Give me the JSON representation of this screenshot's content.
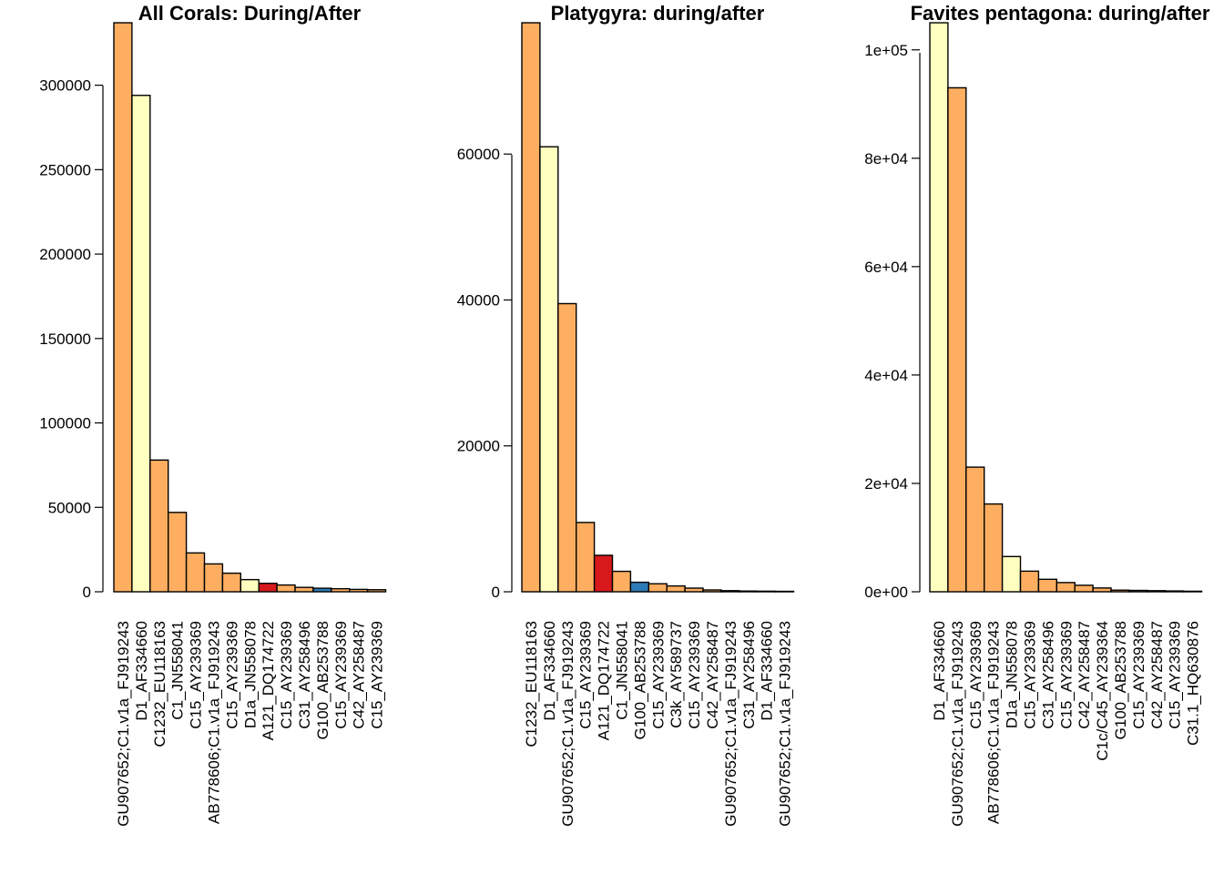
{
  "chart_data": [
    {
      "type": "bar",
      "title": "All Corals: During/After",
      "xlabel": "",
      "ylabel": "",
      "ylim": [
        0,
        337000
      ],
      "yticks": [
        0,
        50000,
        100000,
        150000,
        200000,
        250000,
        300000
      ],
      "ytick_labels": [
        "0",
        "50000",
        "100000",
        "150000",
        "200000",
        "250000",
        "300000"
      ],
      "categories": [
        "GU907652;C1.v1a_FJ919243",
        "D1_AF334660",
        "C1232_EU118163",
        "C1_JN558041",
        "C15_AY239369",
        "AB778606;C1.v1a_FJ919243",
        "C15_AY239369",
        "D1a_JN558078",
        "A121_DQ174722",
        "C15_AY239369",
        "C31_AY258496",
        "G100_AB253788",
        "C15_AY239369",
        "C42_AY258487",
        "C15_AY239369"
      ],
      "values": [
        337000,
        294000,
        78000,
        47000,
        23000,
        16500,
        11000,
        7200,
        5000,
        4000,
        2600,
        2100,
        1800,
        1400,
        1200
      ],
      "colors": [
        "#FDAE61",
        "#FFFFBF",
        "#FDAE61",
        "#FDAE61",
        "#FDAE61",
        "#FDAE61",
        "#FDAE61",
        "#FFFFBF",
        "#D7191C",
        "#FDAE61",
        "#FDAE61",
        "#2C7BB6",
        "#FDAE61",
        "#FDAE61",
        "#FDAE61"
      ]
    },
    {
      "type": "bar",
      "title": "Platygyra: during/after",
      "xlabel": "",
      "ylabel": "",
      "ylim": [
        0,
        78000
      ],
      "yticks": [
        0,
        20000,
        40000,
        60000
      ],
      "ytick_labels": [
        "0",
        "20000",
        "40000",
        "60000"
      ],
      "categories": [
        "C1232_EU118163",
        "D1_AF334660",
        "GU907652;C1.v1a_FJ919243",
        "C15_AY239369",
        "A121_DQ174722",
        "C1_JN558041",
        "G100_AB253788",
        "C15_AY239369",
        "C3k_AY589737",
        "C15_AY239369",
        "C42_AY258487",
        "GU907652;C1.v1a_FJ919243",
        "C31_AY258496",
        "D1_AF334660",
        "GU907652;C1.v1a_FJ919243"
      ],
      "values": [
        78000,
        61000,
        39500,
        9500,
        5000,
        2800,
        1300,
        1100,
        800,
        500,
        250,
        150,
        100,
        80,
        60
      ],
      "colors": [
        "#FDAE61",
        "#FFFFBF",
        "#FDAE61",
        "#FDAE61",
        "#D7191C",
        "#FDAE61",
        "#2C7BB6",
        "#FDAE61",
        "#FDAE61",
        "#FDAE61",
        "#FDAE61",
        "#FDAE61",
        "#FDAE61",
        "#FFFFBF",
        "#FDAE61"
      ]
    },
    {
      "type": "bar",
      "title": "Favites pentagona: during/after",
      "xlabel": "",
      "ylabel": "",
      "ylim": [
        0,
        105000
      ],
      "yticks": [
        0,
        20000,
        40000,
        60000,
        80000,
        100000
      ],
      "ytick_labels": [
        "0e+00",
        "2e+04",
        "4e+04",
        "6e+04",
        "8e+04",
        "1e+05"
      ],
      "categories": [
        "D1_AF334660",
        "GU907652;C1.v1a_FJ919243",
        "C15_AY239369",
        "AB778606;C1.v1a_FJ919243",
        "D1a_JN558078",
        "C15_AY239369",
        "C31_AY258496",
        "C15_AY239369",
        "C42_AY258487",
        "C1c/C45_AY239364",
        "G100_AB253788",
        "C15_AY239369",
        "C42_AY258487",
        "C15_AY239369",
        "C31.1_HQ630876"
      ],
      "values": [
        105000,
        93000,
        23000,
        16200,
        6500,
        3800,
        2300,
        1700,
        1200,
        700,
        300,
        250,
        200,
        150,
        100
      ],
      "colors": [
        "#FFFFBF",
        "#FDAE61",
        "#FDAE61",
        "#FDAE61",
        "#FFFFBF",
        "#FDAE61",
        "#FDAE61",
        "#FDAE61",
        "#FDAE61",
        "#FDAE61",
        "#FDAE61",
        "#FDAE61",
        "#FDAE61",
        "#FDAE61",
        "#FDAE61"
      ]
    }
  ]
}
